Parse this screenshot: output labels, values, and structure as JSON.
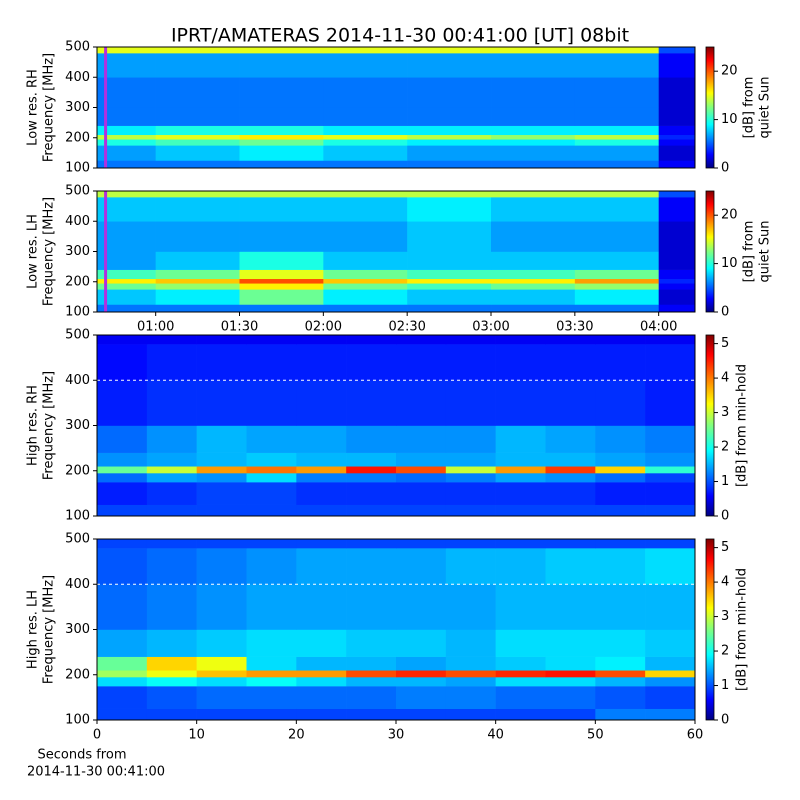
{
  "title": "IPRT/AMATERAS 2014-11-30 00:41:00 [UT]   08bit",
  "chart_data": [
    {
      "type": "heatmap",
      "ylabel": [
        "Low res. RH",
        "Frequency [MHz]"
      ],
      "colorbar_label": [
        "[dB] from",
        "quiet Sun"
      ],
      "xlim": [
        "00:39",
        "04:13"
      ],
      "ylim": [
        100,
        500
      ],
      "yticks": [
        100,
        200,
        300,
        400,
        500
      ],
      "clim": [
        0,
        25
      ],
      "cticks": [
        0,
        10,
        20
      ],
      "colormap": "jet",
      "marker": "00:41",
      "marker_color": "#b030e0",
      "x_bins": [
        "00:39",
        "01:00",
        "01:30",
        "02:00",
        "02:30",
        "03:00",
        "03:30",
        "04:00",
        "04:13"
      ],
      "y_bins": [
        100,
        125,
        175,
        195,
        210,
        240,
        300,
        400,
        480,
        500
      ],
      "z": [
        [
          6,
          6,
          6,
          6,
          6,
          6,
          6,
          3
        ],
        [
          7,
          8,
          9,
          8,
          7,
          7,
          7,
          2
        ],
        [
          10,
          11,
          12,
          10,
          9,
          9,
          10,
          3
        ],
        [
          14,
          15,
          16,
          15,
          14,
          13,
          14,
          4
        ],
        [
          9,
          10,
          10,
          9,
          9,
          9,
          9,
          3
        ],
        [
          6,
          6,
          6,
          6,
          6,
          6,
          6,
          2
        ],
        [
          6,
          6,
          6,
          6,
          6,
          6,
          6,
          2
        ],
        [
          7,
          7,
          7,
          7,
          7,
          7,
          7,
          3
        ],
        [
          15,
          15,
          15,
          15,
          15,
          15,
          15,
          5
        ]
      ]
    },
    {
      "type": "heatmap",
      "ylabel": [
        "Low res. LH",
        "Frequency [MHz]"
      ],
      "colorbar_label": [
        "[dB] from",
        "quiet Sun"
      ],
      "xlim": [
        "00:39",
        "04:13"
      ],
      "xticks": [
        "01:00",
        "01:30",
        "02:00",
        "02:30",
        "03:00",
        "03:30",
        "04:00"
      ],
      "ylim": [
        100,
        500
      ],
      "yticks": [
        100,
        200,
        300,
        400,
        500
      ],
      "clim": [
        0,
        25
      ],
      "cticks": [
        0,
        10,
        20
      ],
      "colormap": "jet",
      "marker": "00:41",
      "marker_color": "#b030e0",
      "x_bins": [
        "00:39",
        "01:00",
        "01:30",
        "02:00",
        "02:30",
        "03:00",
        "03:30",
        "04:00",
        "04:13"
      ],
      "y_bins": [
        100,
        125,
        175,
        195,
        210,
        240,
        300,
        400,
        480,
        500
      ],
      "z": [
        [
          6,
          6,
          6,
          6,
          6,
          6,
          6,
          3
        ],
        [
          8,
          9,
          12,
          9,
          8,
          8,
          9,
          2
        ],
        [
          12,
          13,
          16,
          12,
          11,
          12,
          13,
          3
        ],
        [
          16,
          17,
          20,
          17,
          16,
          16,
          18,
          4
        ],
        [
          11,
          12,
          15,
          12,
          11,
          11,
          12,
          3
        ],
        [
          7,
          8,
          10,
          8,
          8,
          8,
          8,
          2
        ],
        [
          7,
          7,
          7,
          7,
          8,
          7,
          7,
          2
        ],
        [
          8,
          8,
          8,
          8,
          9,
          8,
          8,
          3
        ],
        [
          14,
          14,
          14,
          14,
          14,
          14,
          14,
          5
        ]
      ]
    },
    {
      "type": "heatmap",
      "ylabel": [
        "High res. RH",
        "Frequency [MHz]"
      ],
      "colorbar_label": [
        "[dB] from min-hold"
      ],
      "xlim": [
        0,
        60
      ],
      "ylim": [
        100,
        500
      ],
      "yticks": [
        100,
        200,
        300,
        400,
        500
      ],
      "clim": [
        0,
        5.25
      ],
      "cticks": [
        0,
        1,
        2,
        3,
        4,
        5
      ],
      "colormap": "jet",
      "reference_line": 400,
      "x_bins": [
        0,
        5,
        10,
        15,
        20,
        25,
        30,
        35,
        40,
        45,
        50,
        55,
        60
      ],
      "y_bins": [
        100,
        125,
        175,
        195,
        210,
        240,
        300,
        400,
        480,
        500
      ],
      "z": [
        [
          1,
          1,
          1,
          1,
          1,
          1,
          1,
          1,
          1,
          1,
          1,
          1
        ],
        [
          0.8,
          0.9,
          1.0,
          1.0,
          0.9,
          0.9,
          0.9,
          0.9,
          0.9,
          0.9,
          0.8,
          0.8
        ],
        [
          1.2,
          1.5,
          1.4,
          1.8,
          1.3,
          1.3,
          1.2,
          1.3,
          1.5,
          1.4,
          1.2,
          1.0
        ],
        [
          2.5,
          3.0,
          3.8,
          4.0,
          3.8,
          4.5,
          4.2,
          3.0,
          3.8,
          4.3,
          3.5,
          2.2
        ],
        [
          1.4,
          1.5,
          1.6,
          1.7,
          1.6,
          1.6,
          1.5,
          1.5,
          1.6,
          1.6,
          1.5,
          1.4
        ],
        [
          1.2,
          1.4,
          1.6,
          1.5,
          1.5,
          1.4,
          1.4,
          1.4,
          1.6,
          1.5,
          1.4,
          1.3
        ],
        [
          0.8,
          0.9,
          0.9,
          0.9,
          0.9,
          0.9,
          0.9,
          0.9,
          0.9,
          0.9,
          0.9,
          0.8
        ],
        [
          0.7,
          0.8,
          0.8,
          0.8,
          0.8,
          0.8,
          0.8,
          0.8,
          0.8,
          0.8,
          0.8,
          0.8
        ],
        [
          0.6,
          0.6,
          0.6,
          0.6,
          0.6,
          0.6,
          0.6,
          0.6,
          0.6,
          0.6,
          0.6,
          0.6
        ]
      ]
    },
    {
      "type": "heatmap",
      "ylabel": [
        "High res. LH",
        "Frequency [MHz]"
      ],
      "colorbar_label": [
        "[dB] from min-hold"
      ],
      "xlabel": [
        "Seconds from",
        "2014-11-30 00:41:00"
      ],
      "xlim": [
        0,
        60
      ],
      "xticks": [
        0,
        10,
        20,
        30,
        40,
        50,
        60
      ],
      "ylim": [
        100,
        500
      ],
      "yticks": [
        100,
        200,
        300,
        400,
        500
      ],
      "clim": [
        0,
        5.25
      ],
      "cticks": [
        0,
        1,
        2,
        3,
        4,
        5
      ],
      "colormap": "jet",
      "reference_line": 400,
      "x_bins": [
        0,
        5,
        10,
        15,
        20,
        25,
        30,
        35,
        40,
        45,
        50,
        55,
        60
      ],
      "y_bins": [
        100,
        125,
        175,
        195,
        210,
        240,
        300,
        400,
        480,
        500
      ],
      "z": [
        [
          1,
          1,
          1,
          1,
          1,
          1,
          1,
          1,
          1,
          1,
          1.3,
          1.3
        ],
        [
          1.0,
          1.1,
          1.2,
          1.2,
          1.2,
          1.2,
          1.3,
          1.3,
          1.2,
          1.2,
          1.1,
          1.0
        ],
        [
          1.8,
          2.0,
          1.8,
          2.0,
          1.8,
          1.6,
          1.6,
          1.5,
          1.8,
          1.8,
          1.6,
          1.4
        ],
        [
          2.8,
          3.2,
          3.6,
          3.8,
          3.8,
          4.2,
          4.4,
          4.2,
          4.4,
          4.5,
          4.2,
          3.5
        ],
        [
          2.5,
          3.5,
          3.2,
          1.8,
          1.6,
          1.6,
          1.5,
          1.6,
          1.7,
          1.8,
          1.9,
          1.6
        ],
        [
          1.5,
          1.6,
          1.7,
          1.8,
          1.8,
          1.7,
          1.7,
          1.6,
          1.8,
          1.8,
          1.8,
          1.7
        ],
        [
          1.2,
          1.3,
          1.4,
          1.5,
          1.5,
          1.5,
          1.5,
          1.5,
          1.6,
          1.6,
          1.6,
          1.6
        ],
        [
          1.1,
          1.2,
          1.3,
          1.4,
          1.5,
          1.5,
          1.5,
          1.6,
          1.6,
          1.7,
          1.7,
          1.8
        ],
        [
          1.0,
          1.0,
          1.0,
          1.0,
          1.0,
          1.0,
          1.0,
          1.0,
          1.0,
          1.0,
          1.0,
          1.0
        ]
      ]
    }
  ]
}
